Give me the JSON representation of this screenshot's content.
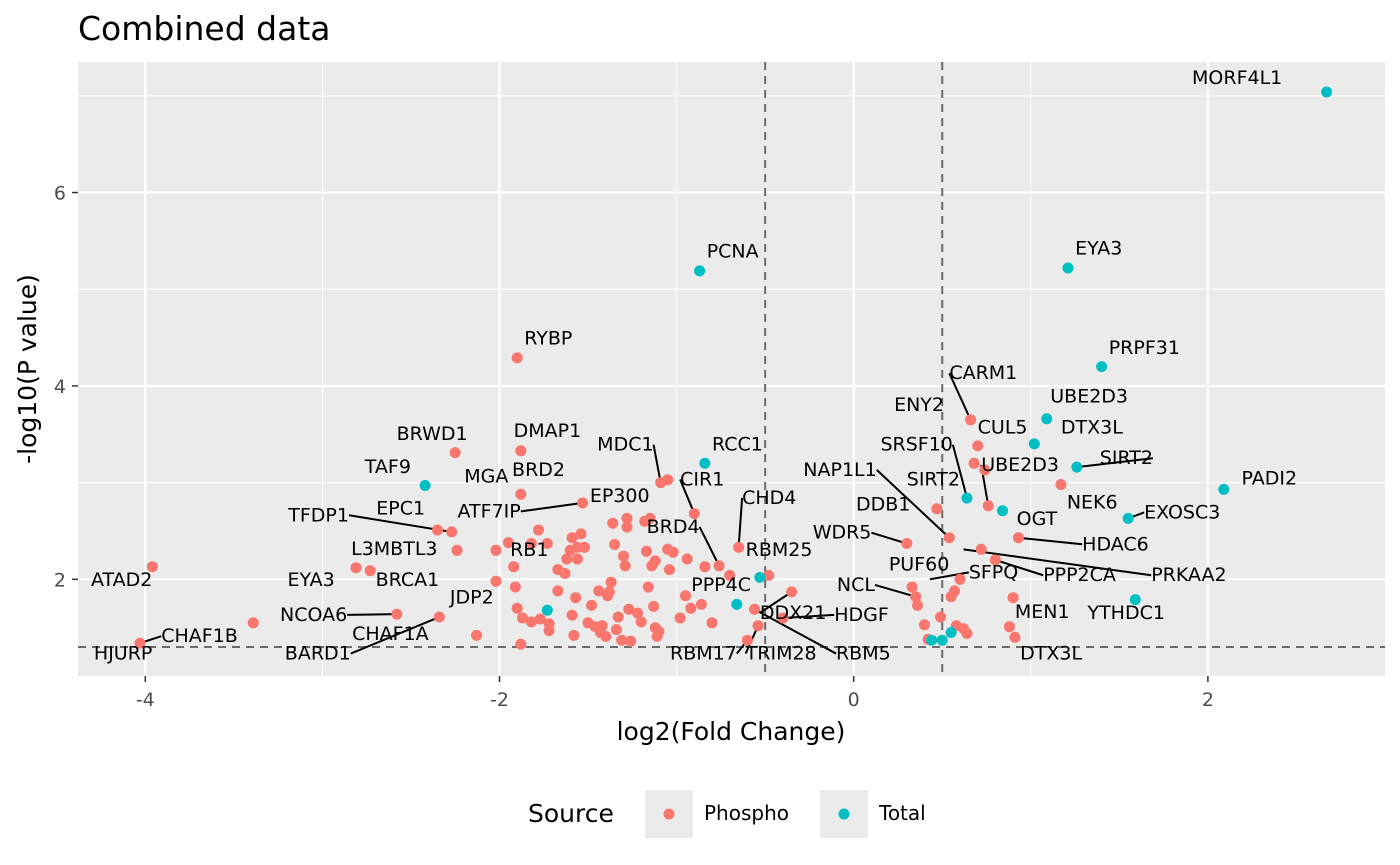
{
  "chart_data": {
    "type": "scatter",
    "title": "Combined data",
    "xlabel": "log2(Fold Change)",
    "ylabel": "-log10(P value)",
    "xlim": [
      -4.38,
      3.0
    ],
    "ylim": [
      1.0,
      7.35
    ],
    "x_ticks": [
      -4,
      -2,
      0,
      2
    ],
    "x_tick_labels": [
      "-4",
      "-2",
      "0",
      "2"
    ],
    "y_ticks": [
      2,
      4,
      6
    ],
    "y_tick_labels": [
      "2",
      "4",
      "6"
    ],
    "grid": true,
    "background": "#EBEBEB",
    "thresholds": {
      "vertical": [
        -0.5,
        0.5
      ],
      "horizontal": [
        1.3
      ]
    },
    "legend": {
      "title": "Source",
      "position": "bottom",
      "entries": [
        {
          "label": "Phospho",
          "color": "#F8766D"
        },
        {
          "label": "Total",
          "color": "#00BFC4"
        }
      ]
    },
    "series": [
      {
        "name": "Phospho",
        "color": "#F8766D",
        "points": [
          [
            -3.96,
            2.13
          ],
          [
            -4.03,
            1.34
          ],
          [
            -3.39,
            1.55
          ],
          [
            -2.81,
            2.12
          ],
          [
            -2.73,
            2.09
          ],
          [
            -2.58,
            1.64
          ],
          [
            -2.34,
            1.61
          ],
          [
            -2.27,
            2.49
          ],
          [
            -2.35,
            2.51
          ],
          [
            -2.24,
            2.3
          ],
          [
            -2.25,
            3.31
          ],
          [
            -2.02,
            2.3
          ],
          [
            -1.88,
            3.33
          ],
          [
            -2.13,
            1.42
          ],
          [
            -2.02,
            1.98
          ],
          [
            -1.95,
            2.38
          ],
          [
            -1.92,
            2.13
          ],
          [
            -1.91,
            1.92
          ],
          [
            -1.9,
            4.29
          ],
          [
            -1.88,
            2.88
          ],
          [
            -1.9,
            1.7
          ],
          [
            -1.88,
            1.33
          ],
          [
            -1.87,
            1.6
          ],
          [
            -1.82,
            1.56
          ],
          [
            -1.82,
            2.37
          ],
          [
            -1.78,
            2.51
          ],
          [
            -1.77,
            1.59
          ],
          [
            -1.73,
            2.37
          ],
          [
            -1.72,
            1.54
          ],
          [
            -1.72,
            1.47
          ],
          [
            -1.67,
            2.1
          ],
          [
            -1.67,
            1.88
          ],
          [
            -1.63,
            2.06
          ],
          [
            -1.62,
            2.21
          ],
          [
            -1.6,
            2.3
          ],
          [
            -1.59,
            2.43
          ],
          [
            -1.59,
            1.63
          ],
          [
            -1.58,
            1.42
          ],
          [
            -1.57,
            1.81
          ],
          [
            -1.56,
            2.21
          ],
          [
            -1.56,
            2.33
          ],
          [
            -1.54,
            2.47
          ],
          [
            -1.53,
            2.79
          ],
          [
            -1.52,
            2.33
          ],
          [
            -1.5,
            1.55
          ],
          [
            -1.48,
            1.73
          ],
          [
            -1.46,
            1.51
          ],
          [
            -1.44,
            1.88
          ],
          [
            -1.43,
            1.45
          ],
          [
            -1.42,
            1.52
          ],
          [
            -1.4,
            1.41
          ],
          [
            -1.39,
            1.83
          ],
          [
            -1.38,
            1.87
          ],
          [
            -1.37,
            1.97
          ],
          [
            -1.36,
            2.58
          ],
          [
            -1.35,
            2.36
          ],
          [
            -1.34,
            1.48
          ],
          [
            -1.33,
            1.61
          ],
          [
            -1.31,
            1.37
          ],
          [
            -1.3,
            2.24
          ],
          [
            -1.29,
            2.14
          ],
          [
            -1.28,
            2.54
          ],
          [
            -1.28,
            2.63
          ],
          [
            -1.27,
            1.69
          ],
          [
            -1.26,
            1.36
          ],
          [
            -1.22,
            1.65
          ],
          [
            -1.2,
            1.56
          ],
          [
            -1.18,
            2.6
          ],
          [
            -1.17,
            2.29
          ],
          [
            -1.16,
            1.92
          ],
          [
            -1.15,
            2.63
          ],
          [
            -1.14,
            2.14
          ],
          [
            -1.13,
            1.72
          ],
          [
            -1.12,
            2.19
          ],
          [
            -1.12,
            1.5
          ],
          [
            -1.11,
            1.41
          ],
          [
            -1.1,
            1.46
          ],
          [
            -1.09,
            3.0
          ],
          [
            -1.05,
            3.03
          ],
          [
            -1.05,
            2.31
          ],
          [
            -1.04,
            2.1
          ],
          [
            -1.02,
            2.28
          ],
          [
            -0.98,
            1.6
          ],
          [
            -0.95,
            1.83
          ],
          [
            -0.94,
            2.21
          ],
          [
            -0.92,
            1.7
          ],
          [
            -0.9,
            2.68
          ],
          [
            -0.86,
            1.74
          ],
          [
            -0.84,
            2.13
          ],
          [
            -0.8,
            1.55
          ],
          [
            -0.76,
            2.14
          ],
          [
            -0.7,
            2.04
          ],
          [
            -0.65,
            2.33
          ],
          [
            -0.6,
            1.37
          ],
          [
            -0.56,
            1.69
          ],
          [
            -0.54,
            1.52
          ],
          [
            -0.48,
            2.04
          ],
          [
            -0.4,
            1.6
          ],
          [
            -0.35,
            1.87
          ],
          [
            0.3,
            2.37
          ],
          [
            0.33,
            1.92
          ],
          [
            0.35,
            1.82
          ],
          [
            0.36,
            1.73
          ],
          [
            0.4,
            1.53
          ],
          [
            0.42,
            1.38
          ],
          [
            0.47,
            2.73
          ],
          [
            0.49,
            1.61
          ],
          [
            0.54,
            2.43
          ],
          [
            0.55,
            1.82
          ],
          [
            0.57,
            1.88
          ],
          [
            0.58,
            1.52
          ],
          [
            0.6,
            2.0
          ],
          [
            0.62,
            1.49
          ],
          [
            0.64,
            1.44
          ],
          [
            0.66,
            3.65
          ],
          [
            0.68,
            3.2
          ],
          [
            0.7,
            3.38
          ],
          [
            0.72,
            2.31
          ],
          [
            0.74,
            3.13
          ],
          [
            0.76,
            2.76
          ],
          [
            0.8,
            2.2
          ],
          [
            0.88,
            1.51
          ],
          [
            0.9,
            1.81
          ],
          [
            0.91,
            1.4
          ],
          [
            0.93,
            2.43
          ],
          [
            1.17,
            2.98
          ]
        ]
      },
      {
        "name": "Total",
        "color": "#00BFC4",
        "points": [
          [
            -2.42,
            2.97
          ],
          [
            -1.73,
            1.68
          ],
          [
            -0.87,
            5.19
          ],
          [
            -0.84,
            3.2
          ],
          [
            -0.66,
            1.74
          ],
          [
            -0.53,
            2.02
          ],
          [
            0.44,
            1.37
          ],
          [
            0.5,
            1.37
          ],
          [
            0.55,
            1.45
          ],
          [
            0.64,
            2.84
          ],
          [
            0.84,
            2.71
          ],
          [
            1.02,
            3.4
          ],
          [
            1.09,
            3.66
          ],
          [
            1.21,
            5.22
          ],
          [
            1.26,
            3.16
          ],
          [
            1.4,
            4.2
          ],
          [
            1.55,
            2.63
          ],
          [
            1.59,
            1.79
          ],
          [
            2.09,
            2.93
          ],
          [
            2.67,
            7.04
          ]
        ]
      }
    ],
    "labels": [
      {
        "text": "MORF4L1",
        "x": 2.67,
        "y": 7.04,
        "lx": 2.42,
        "ly": 7.12,
        "anchor": "end"
      },
      {
        "text": "PCNA",
        "x": -0.87,
        "y": 5.19,
        "lx": -0.83,
        "ly": 5.33,
        "anchor": "start"
      },
      {
        "text": "EYA3",
        "x": 1.21,
        "y": 5.22,
        "lx": 1.25,
        "ly": 5.36,
        "anchor": "start"
      },
      {
        "text": "RYBP",
        "x": -1.9,
        "y": 4.29,
        "lx": -1.86,
        "ly": 4.43,
        "anchor": "start"
      },
      {
        "text": "PRPF31",
        "x": 1.4,
        "y": 4.2,
        "lx": 1.44,
        "ly": 4.33,
        "anchor": "start"
      },
      {
        "text": "CARM1",
        "x": 0.66,
        "y": 3.65,
        "lx": 0.54,
        "ly": 4.07,
        "anchor": "start",
        "leader": true
      },
      {
        "text": "UBE2D3",
        "x": 1.09,
        "y": 3.66,
        "lx": 1.11,
        "ly": 3.83,
        "anchor": "start"
      },
      {
        "text": "ENY2",
        "x": 0.74,
        "y": 3.13,
        "lx": 0.51,
        "ly": 3.74,
        "anchor": "end"
      },
      {
        "text": "CUL5",
        "x": 0.7,
        "y": 3.38,
        "lx": 0.7,
        "ly": 3.51,
        "anchor": "start"
      },
      {
        "text": "DTX3L",
        "x": 1.02,
        "y": 3.4,
        "lx": 1.17,
        "ly": 3.51,
        "anchor": "start"
      },
      {
        "text": "BRWD1",
        "x": -2.25,
        "y": 3.31,
        "lx": -2.18,
        "ly": 3.44,
        "anchor": "end"
      },
      {
        "text": "DMAP1",
        "x": -1.88,
        "y": 3.33,
        "lx": -1.92,
        "ly": 3.47,
        "anchor": "start"
      },
      {
        "text": "MDC1",
        "x": -1.09,
        "y": 3.0,
        "lx": -1.13,
        "ly": 3.33,
        "anchor": "end",
        "leader": true
      },
      {
        "text": "RCC1",
        "x": -0.84,
        "y": 3.2,
        "lx": -0.8,
        "ly": 3.33,
        "anchor": "start"
      },
      {
        "text": "SRSF10",
        "x": 0.64,
        "y": 2.84,
        "lx": 0.56,
        "ly": 3.33,
        "anchor": "end",
        "leader": true
      },
      {
        "text": "UBE2D3",
        "x": 0.76,
        "y": 2.76,
        "lx": 0.72,
        "ly": 3.12,
        "anchor": "start",
        "leader": true
      },
      {
        "text": "SIRT2",
        "x": 1.26,
        "y": 3.16,
        "lx": 1.69,
        "ly": 3.19,
        "anchor": "end",
        "leader": true
      },
      {
        "text": "TAF9",
        "x": -2.42,
        "y": 2.97,
        "lx": -2.5,
        "ly": 3.1,
        "anchor": "end"
      },
      {
        "text": "MGA",
        "x": -1.88,
        "y": 2.88,
        "lx": -1.95,
        "ly": 3.0,
        "anchor": "end"
      },
      {
        "text": "BRD2",
        "x": -1.53,
        "y": 2.79,
        "lx": -1.63,
        "ly": 3.07,
        "anchor": "end"
      },
      {
        "text": "CIR1",
        "x": -0.9,
        "y": 2.68,
        "lx": -0.98,
        "ly": 2.97,
        "anchor": "start",
        "leader": true
      },
      {
        "text": "NAP1L1",
        "x": 0.54,
        "y": 2.43,
        "lx": 0.13,
        "ly": 3.07,
        "anchor": "end",
        "leader": true
      },
      {
        "text": "SIRT2",
        "x": 0.64,
        "y": 2.84,
        "lx": 0.6,
        "ly": 2.97,
        "anchor": "end"
      },
      {
        "text": "PADI2",
        "x": 2.09,
        "y": 2.93,
        "lx": 2.19,
        "ly": 2.98,
        "anchor": "start"
      },
      {
        "text": "NEK6",
        "x": 1.17,
        "y": 2.98,
        "lx": 1.49,
        "ly": 2.73,
        "anchor": "end"
      },
      {
        "text": "EP300",
        "x": -1.53,
        "y": 2.79,
        "lx": -1.49,
        "ly": 2.8,
        "anchor": "start"
      },
      {
        "text": "ATF7IP",
        "x": -1.53,
        "y": 2.79,
        "lx": -1.88,
        "ly": 2.64,
        "anchor": "end",
        "leader": true
      },
      {
        "text": "CHD4",
        "x": -0.65,
        "y": 2.33,
        "lx": -0.63,
        "ly": 2.78,
        "anchor": "start",
        "leader": true
      },
      {
        "text": "DDB1",
        "x": 0.47,
        "y": 2.73,
        "lx": 0.32,
        "ly": 2.71,
        "anchor": "end"
      },
      {
        "text": "EPC1",
        "x": -2.35,
        "y": 2.51,
        "lx": -2.42,
        "ly": 2.67,
        "anchor": "end"
      },
      {
        "text": "TFDP1",
        "x": -2.27,
        "y": 2.49,
        "lx": -2.85,
        "ly": 2.6,
        "anchor": "end",
        "leader": true
      },
      {
        "text": "OGT",
        "x": 0.84,
        "y": 2.71,
        "lx": 0.92,
        "ly": 2.56,
        "anchor": "start"
      },
      {
        "text": "EXOSC3",
        "x": 1.55,
        "y": 2.63,
        "lx": 1.64,
        "ly": 2.63,
        "anchor": "start",
        "leader": true
      },
      {
        "text": "BRD4",
        "x": -0.76,
        "y": 2.14,
        "lx": -0.87,
        "ly": 2.48,
        "anchor": "end",
        "leader": true
      },
      {
        "text": "WDR5",
        "x": 0.3,
        "y": 2.37,
        "lx": 0.1,
        "ly": 2.42,
        "anchor": "end",
        "leader": true
      },
      {
        "text": "HDAC6",
        "x": 0.93,
        "y": 2.43,
        "lx": 1.29,
        "ly": 2.3,
        "anchor": "start",
        "leader": true
      },
      {
        "text": "L3MBTL3",
        "x": -2.81,
        "y": 2.12,
        "lx": -2.35,
        "ly": 2.25,
        "anchor": "end"
      },
      {
        "text": "RB1",
        "x": -1.91,
        "y": 2.13,
        "lx": -1.94,
        "ly": 2.24,
        "anchor": "start"
      },
      {
        "text": "RBM25",
        "x": -0.48,
        "y": 2.04,
        "lx": -0.61,
        "ly": 2.24,
        "anchor": "start"
      },
      {
        "text": "PUF60",
        "x": 0.6,
        "y": 2.0,
        "lx": 0.54,
        "ly": 2.09,
        "anchor": "end"
      },
      {
        "text": "SFPQ",
        "x": 0.43,
        "y": 2.0,
        "lx": 0.65,
        "ly": 2.01,
        "anchor": "start",
        "leader": true
      },
      {
        "text": "PPP2CA",
        "x": 0.8,
        "y": 2.2,
        "lx": 1.07,
        "ly": 1.98,
        "anchor": "start",
        "leader": true
      },
      {
        "text": "PRKAA2",
        "x": 0.62,
        "y": 2.31,
        "lx": 1.68,
        "ly": 1.98,
        "anchor": "start",
        "leader": true
      },
      {
        "text": "ATAD2",
        "x": -3.96,
        "y": 2.13,
        "lx": -3.96,
        "ly": 1.93,
        "anchor": "end"
      },
      {
        "text": "EYA3",
        "x": -2.73,
        "y": 2.09,
        "lx": -2.93,
        "ly": 1.93,
        "anchor": "end"
      },
      {
        "text": "BRCA1",
        "x": -2.58,
        "y": 1.64,
        "lx": -2.34,
        "ly": 1.93,
        "anchor": "end"
      },
      {
        "text": "PPP4C",
        "x": -0.66,
        "y": 1.74,
        "lx": -0.58,
        "ly": 1.88,
        "anchor": "end"
      },
      {
        "text": "NCL",
        "x": 0.35,
        "y": 1.82,
        "lx": 0.12,
        "ly": 1.88,
        "anchor": "end",
        "leader": true
      },
      {
        "text": "YTHDC1",
        "x": 1.59,
        "y": 1.79,
        "lx": 1.32,
        "ly": 1.59,
        "anchor": "start"
      },
      {
        "text": "JDP2",
        "x": -2.34,
        "y": 1.61,
        "lx": -2.28,
        "ly": 1.75,
        "anchor": "start"
      },
      {
        "text": "NCOA6",
        "x": -2.58,
        "y": 1.64,
        "lx": -2.86,
        "ly": 1.57,
        "anchor": "end",
        "leader": true
      },
      {
        "text": "DDX21",
        "x": -0.35,
        "y": 1.87,
        "lx": -0.53,
        "ly": 1.59,
        "anchor": "start",
        "leader": true
      },
      {
        "text": "HDGF",
        "x": -0.4,
        "y": 1.6,
        "lx": -0.11,
        "ly": 1.57,
        "anchor": "start",
        "leader": true
      },
      {
        "text": "MEN1",
        "x": 0.91,
        "y": 1.4,
        "lx": 0.91,
        "ly": 1.6,
        "anchor": "start"
      },
      {
        "text": "CHAF1B",
        "x": -4.03,
        "y": 1.34,
        "lx": -3.91,
        "ly": 1.35,
        "anchor": "start",
        "leader": true
      },
      {
        "text": "CHAF1A",
        "x": -2.13,
        "y": 1.42,
        "lx": -2.4,
        "ly": 1.37,
        "anchor": "end"
      },
      {
        "text": "BARD1",
        "x": -2.34,
        "y": 1.61,
        "lx": -2.84,
        "ly": 1.17,
        "anchor": "end",
        "leader": true
      },
      {
        "text": "HJURP",
        "x": -4.03,
        "y": 1.34,
        "lx": -3.96,
        "ly": 1.17,
        "anchor": "end"
      },
      {
        "text": "RBM17",
        "x": -0.6,
        "y": 1.37,
        "lx": -0.66,
        "ly": 1.17,
        "anchor": "end",
        "leader": true
      },
      {
        "text": "TRIM28",
        "x": -0.54,
        "y": 1.52,
        "lx": -0.61,
        "ly": 1.17,
        "anchor": "start",
        "leader": true
      },
      {
        "text": "RBM5",
        "x": -0.56,
        "y": 1.69,
        "lx": -0.1,
        "ly": 1.17,
        "anchor": "start",
        "leader": true
      },
      {
        "text": "DTX3L",
        "x": 0.5,
        "y": 1.37,
        "lx": 0.94,
        "ly": 1.17,
        "anchor": "start"
      }
    ]
  }
}
